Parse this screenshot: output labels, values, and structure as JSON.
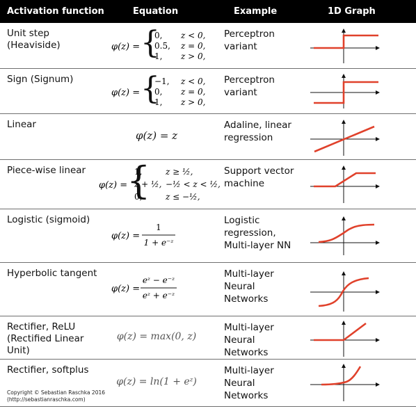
{
  "table": {
    "headers": {
      "name": "Activation function",
      "equation": "Equation",
      "example": "Example",
      "graph": "1D Graph"
    },
    "rows": [
      {
        "name": "Unit step\n(Heaviside)",
        "example": "Perceptron\nvariant",
        "equation": {
          "lhs": "φ(z) =",
          "cases": [
            [
              "0,",
              "z < 0,"
            ],
            [
              "0.5,",
              "z = 0,"
            ],
            [
              "1,",
              "z > 0,"
            ]
          ]
        }
      },
      {
        "name": "Sign (Signum)",
        "example": "Perceptron\nvariant",
        "equation": {
          "lhs": "φ(z) =",
          "cases": [
            [
              "−1,",
              "z < 0,"
            ],
            [
              "0,",
              "z = 0,"
            ],
            [
              "1,",
              "z > 0,"
            ]
          ]
        }
      },
      {
        "name": "Linear",
        "example": "Adaline, linear\nregression",
        "equation": {
          "text": "φ(z) = z"
        }
      },
      {
        "name": "Piece-wise linear",
        "example": "Support vector\nmachine",
        "equation": {
          "lhs": "φ(z) =",
          "cases": [
            [
              "1,",
              "z ≥ ½,"
            ],
            [
              "z + ½,",
              "−½ < z < ½,"
            ],
            [
              "0,",
              "z ≤ −½,"
            ]
          ]
        }
      },
      {
        "name": "Logistic (sigmoid)",
        "example": "Logistic\nregression,\nMulti-layer NN",
        "equation": {
          "lhs": "φ(z) =",
          "num": "1",
          "den": "1 + e⁻ᶻ"
        }
      },
      {
        "name": "Hyperbolic tangent",
        "example": "Multi-layer\nNeural\nNetworks",
        "equation": {
          "lhs": "φ(z) =",
          "num": "eᶻ − e⁻ᶻ",
          "den": "eᶻ + e⁻ᶻ"
        }
      },
      {
        "name": "Rectifier, ReLU\n(Rectified Linear\nUnit)",
        "example": "Multi-layer\nNeural\nNetworks",
        "equation": {
          "text": "φ(z) = max(0, z)"
        }
      },
      {
        "name": "Rectifier, softplus",
        "example": "Multi-layer\nNeural\nNetworks",
        "equation": {
          "text": "φ(z) = ln(1 + eᶻ)"
        }
      }
    ]
  },
  "copyright": "Copyright © Sebastian Raschka 2016\n(http://sebastianraschka.com)",
  "colors": {
    "curve": "#e0412b",
    "axis": "#111111",
    "header_bg": "#000000",
    "header_text": "#ffffff"
  }
}
